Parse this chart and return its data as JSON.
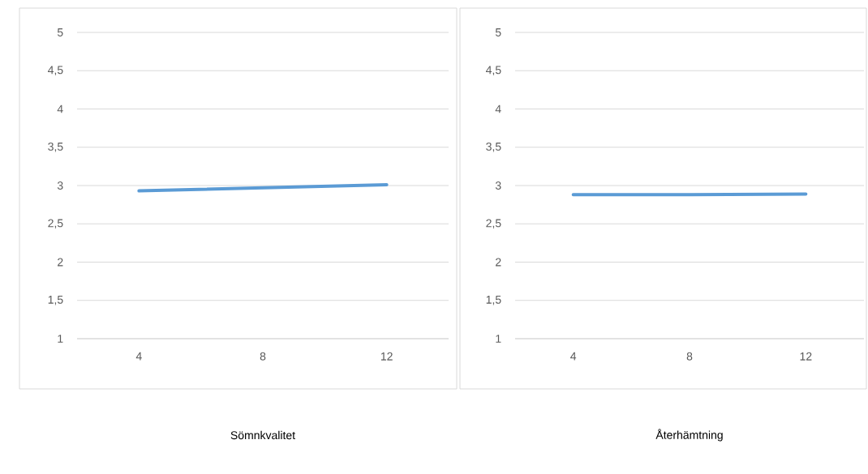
{
  "chart_data": [
    {
      "type": "line",
      "xlabel": "Sömnkvalitet",
      "categories": [
        "4",
        "8",
        "12"
      ],
      "series": [
        {
          "color": "#5b9bd5",
          "values": [
            2.93,
            2.97,
            3.01
          ]
        }
      ],
      "ylim": [
        1,
        5
      ],
      "yticks": [
        1,
        {
          "value": 1.5,
          "label": "1,5"
        },
        2,
        {
          "value": 2.5,
          "label": "2,5"
        },
        3,
        {
          "value": 3.5,
          "label": "3,5"
        },
        4,
        {
          "value": 4.5,
          "label": "4,5"
        },
        5
      ],
      "grid": "y"
    },
    {
      "type": "line",
      "xlabel": "Återhämtning",
      "categories": [
        "4",
        "8",
        "12"
      ],
      "series": [
        {
          "color": "#5b9bd5",
          "values": [
            2.88,
            2.88,
            2.89
          ]
        }
      ],
      "ylim": [
        1,
        5
      ],
      "yticks": [
        1,
        {
          "value": 1.5,
          "label": "1,5"
        },
        2,
        {
          "value": 2.5,
          "label": "2,5"
        },
        3,
        {
          "value": 3.5,
          "label": "3,5"
        },
        4,
        {
          "value": 4.5,
          "label": "4,5"
        },
        5
      ],
      "grid": "y"
    }
  ]
}
